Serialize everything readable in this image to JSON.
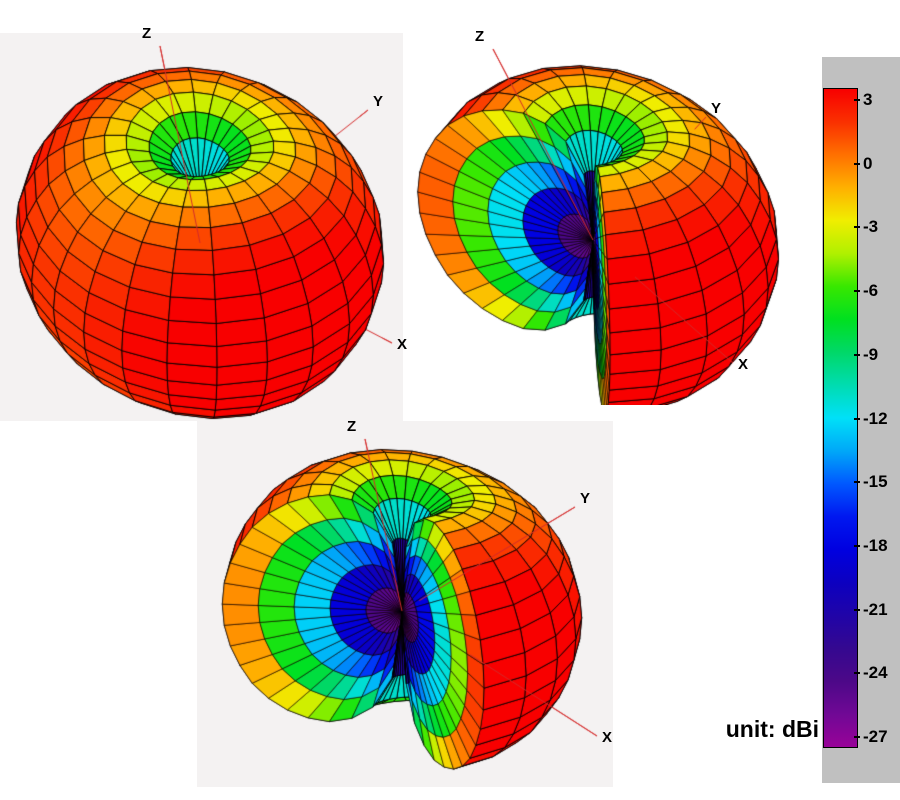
{
  "figure": {
    "description": "Three 3D views of an antenna radiation gain pattern with a shared color scale",
    "unit_label": "unit: dBi"
  },
  "chart_data": {
    "type": "heatmap",
    "subtype": "3d-antenna-radiation-pattern-surface",
    "title": "",
    "unit": "dBi",
    "colorbar": {
      "unit_label": "unit: dBi",
      "max": 3,
      "min": -27,
      "tick_step": 3,
      "ticks": [
        "3",
        "0",
        "-3",
        "-6",
        "-9",
        "-12",
        "-15",
        "-18",
        "-21",
        "-24",
        "-27"
      ],
      "colormap_stops": [
        [
          0.0,
          "#f80000"
        ],
        [
          0.05,
          "#fa3000"
        ],
        [
          0.1,
          "#ff7000"
        ],
        [
          0.15,
          "#ffb000"
        ],
        [
          0.2,
          "#f0ee00"
        ],
        [
          0.25,
          "#b0f000"
        ],
        [
          0.3,
          "#38e800"
        ],
        [
          0.35,
          "#00e020"
        ],
        [
          0.4,
          "#00d868"
        ],
        [
          0.45,
          "#00dcb0"
        ],
        [
          0.5,
          "#00e0f8"
        ],
        [
          0.55,
          "#00a8f8"
        ],
        [
          0.6,
          "#0058ff"
        ],
        [
          0.65,
          "#0018f0"
        ],
        [
          0.7,
          "#0000e0"
        ],
        [
          0.75,
          "#0c00c0"
        ],
        [
          0.8,
          "#2004a8"
        ],
        [
          0.85,
          "#340890"
        ],
        [
          0.9,
          "#4c0888"
        ],
        [
          0.95,
          "#700895"
        ],
        [
          1.0,
          "#980298"
        ]
      ]
    },
    "gain_profile_dBi": [
      [
        0,
        -27
      ],
      [
        2,
        -25.5
      ],
      [
        5,
        -18.2
      ],
      [
        7.5,
        -14.7
      ],
      [
        10,
        -12.2
      ],
      [
        15,
        -8.7
      ],
      [
        20,
        -6.3
      ],
      [
        25,
        -4.5
      ],
      [
        30,
        -3
      ],
      [
        40,
        -0.9
      ],
      [
        50,
        0.7
      ],
      [
        60,
        1.8
      ],
      [
        70,
        2.4
      ],
      [
        80,
        2.9
      ],
      [
        90,
        3
      ]
    ],
    "profile_symmetric_about_equator": true,
    "ripple": {
      "amplitude_dB": 1.5,
      "lobes": 2,
      "phase_deg": 160
    },
    "mesh": {
      "theta_step": 7.5,
      "phi_step": 15
    },
    "axis_color": "#d42a2a",
    "axis_label_offsets": {
      "z": [
        -18,
        -20
      ],
      "y": [
        5,
        -16
      ],
      "x": [
        5,
        -6
      ]
    },
    "views": [
      {
        "name": "full-pattern",
        "axis_labels": {
          "x": "X",
          "y": "Y",
          "z": "Z"
        },
        "az": -50,
        "el": 40,
        "cut": null,
        "pos": [
          0,
          33
        ],
        "size": [
          403,
          388
        ],
        "origin": [
          200,
          210
        ],
        "scale": 188,
        "axis_tips": {
          "z": [
            160,
            13
          ],
          "y": [
            368,
            77
          ],
          "x": [
            392,
            310
          ]
        },
        "axis_vis": {
          "z": 0,
          "y": 0.95,
          "x": 0.95
        }
      },
      {
        "name": "cutaway-pattern-1",
        "axis_labels": {
          "x": "X",
          "y": "Y",
          "z": "Z"
        },
        "az": -50,
        "el": 36,
        "cut": [
          195,
          315
        ],
        "pos": [
          398,
          35
        ],
        "size": [
          400,
          370
        ],
        "origin": [
          195,
          205
        ],
        "scale": 190,
        "axis_tips": {
          "z": [
            95,
            14
          ],
          "y": [
            308,
            82
          ],
          "x": [
            335,
            328
          ]
        },
        "axis_vis": {
          "z": 0,
          "y": 0.9,
          "x": 0.3
        }
      },
      {
        "name": "cutaway-pattern-2",
        "axis_labels": {
          "x": "X",
          "y": "Y",
          "z": "Z"
        },
        "az": -45,
        "el": 26,
        "cut": [
          220,
          340
        ],
        "pos": [
          197,
          421
        ],
        "size": [
          416,
          366
        ],
        "origin": [
          205,
          190
        ],
        "scale": 185,
        "axis_tips": {
          "z": [
            168,
            18
          ],
          "y": [
            378,
            86
          ],
          "x": [
            400,
            315
          ]
        },
        "axis_vis": {
          "z": 0,
          "y": 0.1,
          "x": 0.35
        }
      }
    ]
  }
}
